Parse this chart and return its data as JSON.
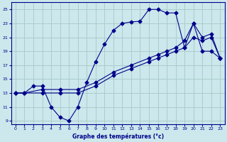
{
  "title": "Graphe des températures (°c)",
  "bg_color": "#cce8ec",
  "grid_color": "#aacccc",
  "line_color": "#00008b",
  "marker": "D",
  "markersize": 2.5,
  "xlim": [
    -0.5,
    23.5
  ],
  "ylim": [
    8.5,
    26
  ],
  "xticks": [
    0,
    1,
    2,
    3,
    4,
    5,
    6,
    7,
    8,
    9,
    10,
    11,
    12,
    13,
    14,
    15,
    16,
    17,
    18,
    19,
    20,
    21,
    22,
    23
  ],
  "yticks": [
    9,
    11,
    13,
    15,
    17,
    19,
    21,
    23,
    25
  ],
  "line1_x": [
    0,
    1,
    2,
    3,
    4,
    5,
    6,
    7,
    8,
    9,
    10,
    11,
    12,
    13,
    14,
    15,
    16,
    17,
    18,
    19,
    20,
    21,
    22,
    23
  ],
  "line1_y": [
    13,
    13,
    14,
    14,
    11,
    9.5,
    9,
    11,
    14.5,
    17.5,
    20,
    22,
    23,
    23.2,
    23.3,
    25,
    25,
    24.5,
    24.5,
    19.5,
    23,
    19,
    19,
    18
  ],
  "line2_x": [
    0,
    1,
    3,
    5,
    7,
    9,
    11,
    13,
    15,
    16,
    17,
    18,
    19,
    20,
    21,
    22,
    23
  ],
  "line2_y": [
    13,
    13,
    13.5,
    13.5,
    13.5,
    14.5,
    16,
    17,
    18,
    18.5,
    19,
    19.5,
    20.5,
    23,
    21,
    21.5,
    18
  ],
  "line3_x": [
    0,
    1,
    3,
    5,
    7,
    9,
    11,
    13,
    15,
    16,
    17,
    18,
    19,
    20,
    21,
    22,
    23
  ],
  "line3_y": [
    13,
    13,
    13,
    13,
    13,
    14,
    15.5,
    16.5,
    17.5,
    18,
    18.5,
    19,
    19.5,
    21,
    20.5,
    21,
    18
  ]
}
